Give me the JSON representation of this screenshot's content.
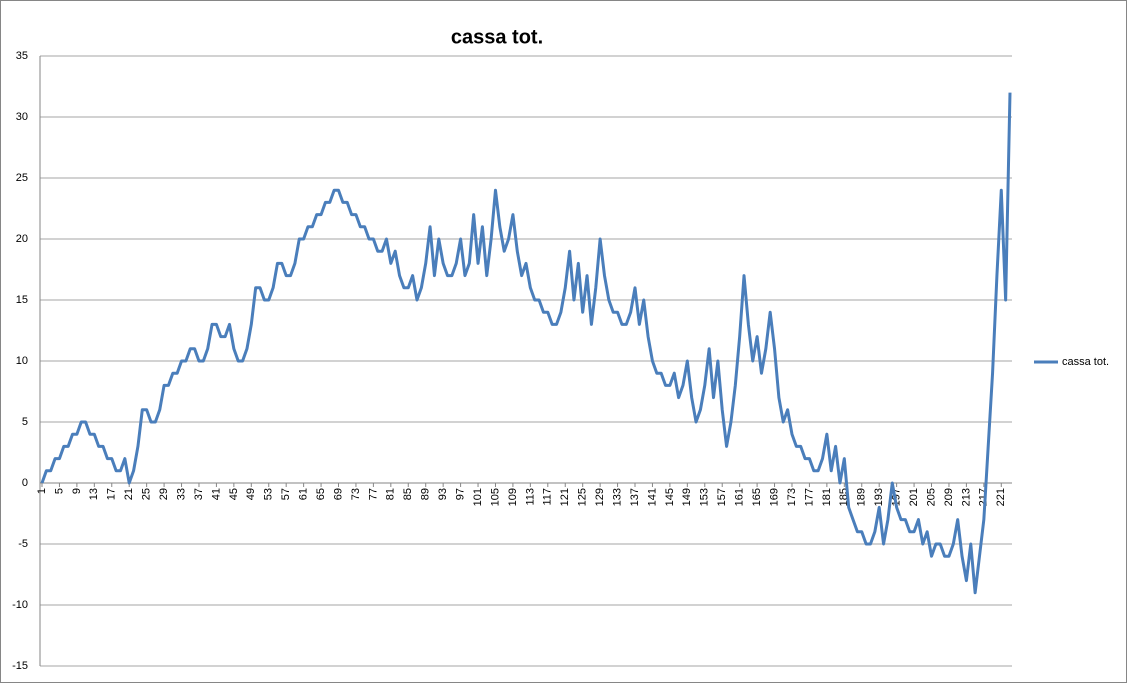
{
  "chart_data": {
    "type": "line",
    "title": "cassa tot.",
    "categories": [
      1,
      null,
      null,
      null,
      5,
      null,
      null,
      null,
      9,
      null,
      null,
      null,
      13,
      null,
      null,
      null,
      17,
      null,
      null,
      null,
      21,
      null,
      null,
      null,
      25,
      null,
      null,
      null,
      29,
      null,
      null,
      null,
      33,
      null,
      null,
      null,
      37,
      null,
      null,
      null,
      41,
      null,
      null,
      null,
      45,
      null,
      null,
      null,
      49,
      null,
      null,
      null,
      53,
      null,
      null,
      null,
      57,
      null,
      null,
      null,
      61,
      null,
      null,
      null,
      65,
      null,
      null,
      null,
      69,
      null,
      null,
      null,
      73,
      null,
      null,
      null,
      77,
      null,
      null,
      null,
      81,
      null,
      null,
      null,
      85,
      null,
      null,
      null,
      89,
      null,
      null,
      null,
      93,
      null,
      null,
      null,
      97,
      null,
      null,
      null,
      101,
      null,
      null,
      null,
      105,
      null,
      null,
      null,
      109,
      null,
      null,
      null,
      113,
      null,
      null,
      null,
      117,
      null,
      null,
      null,
      121,
      null,
      null,
      null,
      125,
      null,
      null,
      null,
      129,
      null,
      null,
      null,
      133,
      null,
      null,
      null,
      137,
      null,
      null,
      null,
      141,
      null,
      null,
      null,
      145,
      null,
      null,
      null,
      149,
      null,
      null,
      null,
      153,
      null,
      null,
      null,
      157,
      null,
      null,
      null,
      161,
      null,
      null,
      null,
      165,
      null,
      null,
      null,
      169,
      null,
      null,
      null,
      173,
      null,
      null,
      null,
      177,
      null,
      null,
      null,
      181,
      null,
      null,
      null,
      185,
      null,
      null,
      null,
      189,
      null,
      null,
      null,
      193,
      null,
      null,
      null,
      197,
      null,
      null,
      null,
      201,
      null,
      null,
      null,
      205,
      null,
      null,
      null,
      209,
      null,
      null,
      null,
      213,
      null,
      null,
      null,
      217,
      null,
      null,
      null,
      221,
      null,
      null
    ],
    "series": [
      {
        "name": "cassa tot.",
        "color": "#4a7ebb",
        "values": [
          0,
          1,
          1,
          2,
          2,
          3,
          3,
          4,
          4,
          5,
          5,
          4,
          4,
          3,
          3,
          2,
          2,
          1,
          1,
          2,
          0,
          1,
          3,
          6,
          6,
          5,
          5,
          6,
          8,
          8,
          9,
          9,
          10,
          10,
          11,
          11,
          10,
          10,
          11,
          13,
          13,
          12,
          12,
          13,
          11,
          10,
          10,
          11,
          13,
          16,
          16,
          15,
          15,
          16,
          18,
          18,
          17,
          17,
          18,
          20,
          20,
          21,
          21,
          22,
          22,
          23,
          23,
          24,
          24,
          23,
          23,
          22,
          22,
          21,
          21,
          20,
          20,
          19,
          19,
          20,
          18,
          19,
          17,
          16,
          16,
          17,
          15,
          16,
          18,
          21,
          17,
          20,
          18,
          17,
          17,
          18,
          20,
          17,
          18,
          22,
          18,
          21,
          17,
          20,
          24,
          21,
          19,
          20,
          22,
          19,
          17,
          18,
          16,
          15,
          15,
          14,
          14,
          13,
          13,
          14,
          16,
          19,
          15,
          18,
          14,
          17,
          13,
          16,
          20,
          17,
          15,
          14,
          14,
          13,
          13,
          14,
          16,
          13,
          15,
          12,
          10,
          9,
          9,
          8,
          8,
          9,
          7,
          8,
          10,
          7,
          5,
          6,
          8,
          11,
          7,
          10,
          6,
          3,
          5,
          8,
          12,
          17,
          13,
          10,
          12,
          9,
          11,
          14,
          11,
          7,
          5,
          6,
          4,
          3,
          3,
          2,
          2,
          1,
          1,
          2,
          4,
          1,
          3,
          0,
          2,
          -2,
          -3,
          -4,
          -4,
          -5,
          -5,
          -4,
          -2,
          -5,
          -3,
          0,
          -2,
          -3,
          -3,
          -4,
          -4,
          -3,
          -5,
          -4,
          -6,
          -5,
          -5,
          -6,
          -6,
          -5,
          -3,
          -6,
          -8,
          -5,
          -9,
          -6,
          -3,
          3,
          9,
          17,
          24,
          15,
          32
        ]
      }
    ],
    "ylim": [
      -15,
      35
    ],
    "yticks": [
      -15,
      -10,
      -5,
      0,
      5,
      10,
      15,
      20,
      25,
      30,
      35
    ],
    "grid": true,
    "legend": "right"
  }
}
